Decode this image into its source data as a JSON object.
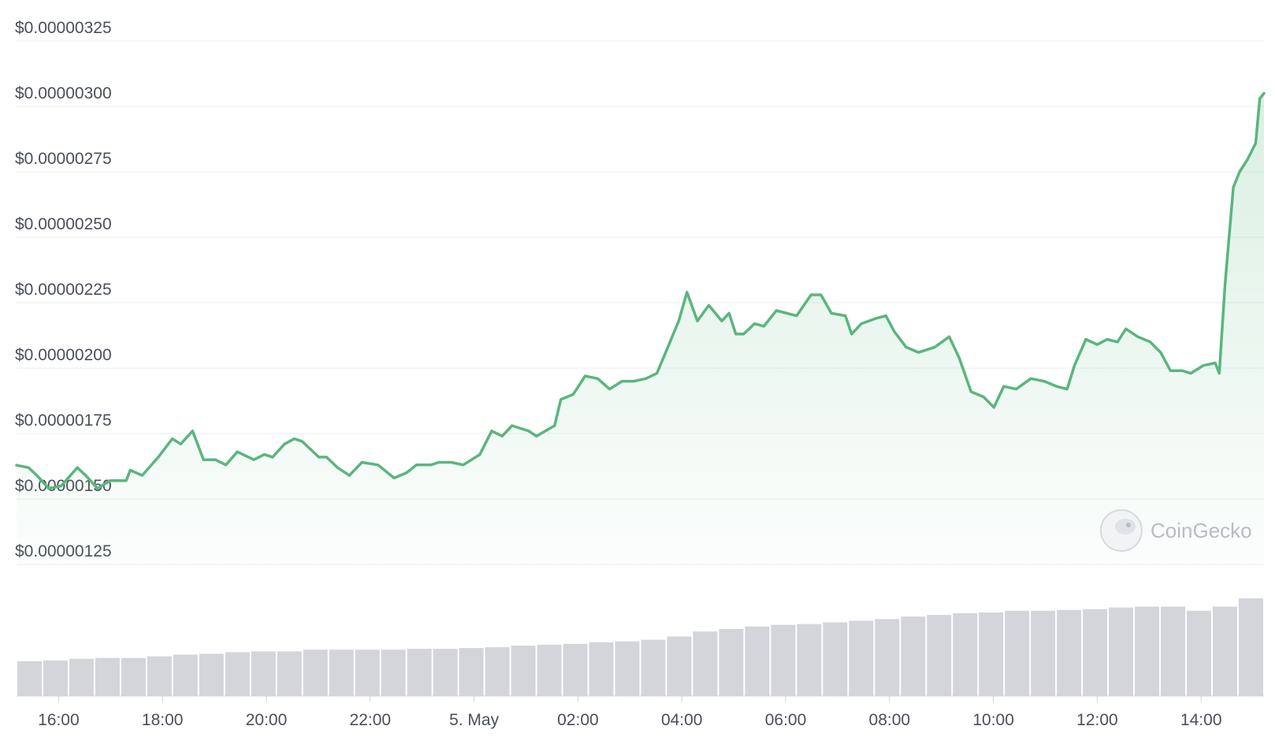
{
  "chart_data": {
    "type": "line",
    "watermark": "CoinGecko",
    "x": [
      15.19,
      15.42,
      15.58,
      15.81,
      16.05,
      16.36,
      16.52,
      16.75,
      16.99,
      17.3,
      17.38,
      17.61,
      17.92,
      18.19,
      18.35,
      18.58,
      18.79,
      19.02,
      19.22,
      19.44,
      19.76,
      19.96,
      20.12,
      20.35,
      20.54,
      20.69,
      21.01,
      21.16,
      21.37,
      21.6,
      21.84,
      22.15,
      22.46,
      22.7,
      22.89,
      23.17,
      23.32,
      23.56,
      23.79,
      24.11,
      24.34,
      24.54,
      24.73,
      25.05,
      25.2,
      25.55,
      25.67,
      25.91,
      26.14,
      26.38,
      26.61,
      26.85,
      27.08,
      27.31,
      27.52,
      27.71,
      27.94,
      28.1,
      28.3,
      28.52,
      28.77,
      28.91,
      29.04,
      29.19,
      29.4,
      29.58,
      29.82,
      30.02,
      30.21,
      30.49,
      30.68,
      30.88,
      31.15,
      31.27,
      31.46,
      31.74,
      31.93,
      32.09,
      32.32,
      32.56,
      32.87,
      33.15,
      33.34,
      33.57,
      33.81,
      34.01,
      34.2,
      34.44,
      34.72,
      34.98,
      35.22,
      35.42,
      35.56,
      35.78,
      36.0,
      36.19,
      36.39,
      36.55,
      36.78,
      37.02,
      37.22,
      37.41,
      37.64,
      37.8,
      38.04,
      38.27,
      38.35,
      38.46,
      38.62,
      38.74,
      38.9,
      39.05,
      39.13,
      39.21
    ],
    "series": [
      {
        "color": "#5ab67d",
        "values": [
          1.629e-06,
          1.62e-06,
          1.59e-06,
          1.54e-06,
          1.55e-06,
          1.62e-06,
          1.59e-06,
          1.54e-06,
          1.57e-06,
          1.57e-06,
          1.61e-06,
          1.59e-06,
          1.66e-06,
          1.73e-06,
          1.71e-06,
          1.76e-06,
          1.65e-06,
          1.65e-06,
          1.63e-06,
          1.68e-06,
          1.65e-06,
          1.67e-06,
          1.66e-06,
          1.71e-06,
          1.73e-06,
          1.72e-06,
          1.66e-06,
          1.66e-06,
          1.62e-06,
          1.59e-06,
          1.64e-06,
          1.63e-06,
          1.58e-06,
          1.6e-06,
          1.63e-06,
          1.63e-06,
          1.64e-06,
          1.64e-06,
          1.63e-06,
          1.67e-06,
          1.76e-06,
          1.74e-06,
          1.78e-06,
          1.76e-06,
          1.74e-06,
          1.78e-06,
          1.88e-06,
          1.9e-06,
          1.97e-06,
          1.96e-06,
          1.92e-06,
          1.95e-06,
          1.95e-06,
          1.96e-06,
          1.98e-06,
          2.07e-06,
          2.18e-06,
          2.29e-06,
          2.18e-06,
          2.24e-06,
          2.18e-06,
          2.21e-06,
          2.13e-06,
          2.13e-06,
          2.17e-06,
          2.16e-06,
          2.22e-06,
          2.21e-06,
          2.2e-06,
          2.28e-06,
          2.28e-06,
          2.21e-06,
          2.2e-06,
          2.13e-06,
          2.17e-06,
          2.19e-06,
          2.2e-06,
          2.14e-06,
          2.08e-06,
          2.06e-06,
          2.08e-06,
          2.12e-06,
          2.04e-06,
          1.91e-06,
          1.89e-06,
          1.85e-06,
          1.93e-06,
          1.92e-06,
          1.96e-06,
          1.95e-06,
          1.93e-06,
          1.92e-06,
          2.01e-06,
          2.11e-06,
          2.09e-06,
          2.11e-06,
          2.1e-06,
          2.15e-06,
          2.12e-06,
          2.1e-06,
          2.06e-06,
          1.99e-06,
          1.99e-06,
          1.98e-06,
          2.01e-06,
          2.02e-06,
          1.98e-06,
          2.32e-06,
          2.69e-06,
          2.75e-06,
          2.8e-06,
          2.86e-06,
          3.03e-06,
          3.05e-06
        ]
      }
    ],
    "volume": {
      "color": "#d3d5db",
      "values": [
        42,
        43,
        45,
        46,
        46,
        48,
        50,
        51,
        53,
        54,
        54,
        56,
        56,
        56,
        56,
        57,
        57,
        58,
        59,
        61,
        62,
        63,
        65,
        66,
        68,
        72,
        78,
        81,
        84,
        86,
        87,
        89,
        91,
        93,
        96,
        98,
        100,
        101,
        103,
        103,
        104,
        105,
        107,
        108,
        108,
        103,
        108,
        118
      ]
    },
    "xlim": [
      15.19,
      39.21
    ],
    "xticks": [
      {
        "value": 16,
        "label": "16:00"
      },
      {
        "value": 18,
        "label": "18:00"
      },
      {
        "value": 20,
        "label": "20:00"
      },
      {
        "value": 22,
        "label": "22:00"
      },
      {
        "value": 24,
        "label": "5. May"
      },
      {
        "value": 26,
        "label": "02:00"
      },
      {
        "value": 28,
        "label": "04:00"
      },
      {
        "value": 30,
        "label": "06:00"
      },
      {
        "value": 32,
        "label": "08:00"
      },
      {
        "value": 34,
        "label": "10:00"
      },
      {
        "value": 36,
        "label": "12:00"
      },
      {
        "value": 38,
        "label": "14:00"
      }
    ],
    "ylim": [
      1.25e-06,
      3.25e-06
    ],
    "yticks": [
      {
        "value": 1.25e-06,
        "label": "$0.00000125"
      },
      {
        "value": 1.5e-06,
        "label": "$0.00000150"
      },
      {
        "value": 1.75e-06,
        "label": "$0.00000175"
      },
      {
        "value": 2e-06,
        "label": "$0.00000200"
      },
      {
        "value": 2.25e-06,
        "label": "$0.00000225"
      },
      {
        "value": 2.5e-06,
        "label": "$0.00000250"
      },
      {
        "value": 2.75e-06,
        "label": "$0.00000275"
      },
      {
        "value": 3e-06,
        "label": "$0.00000300"
      },
      {
        "value": 3.25e-06,
        "label": "$0.00000325"
      }
    ],
    "grid": true
  }
}
